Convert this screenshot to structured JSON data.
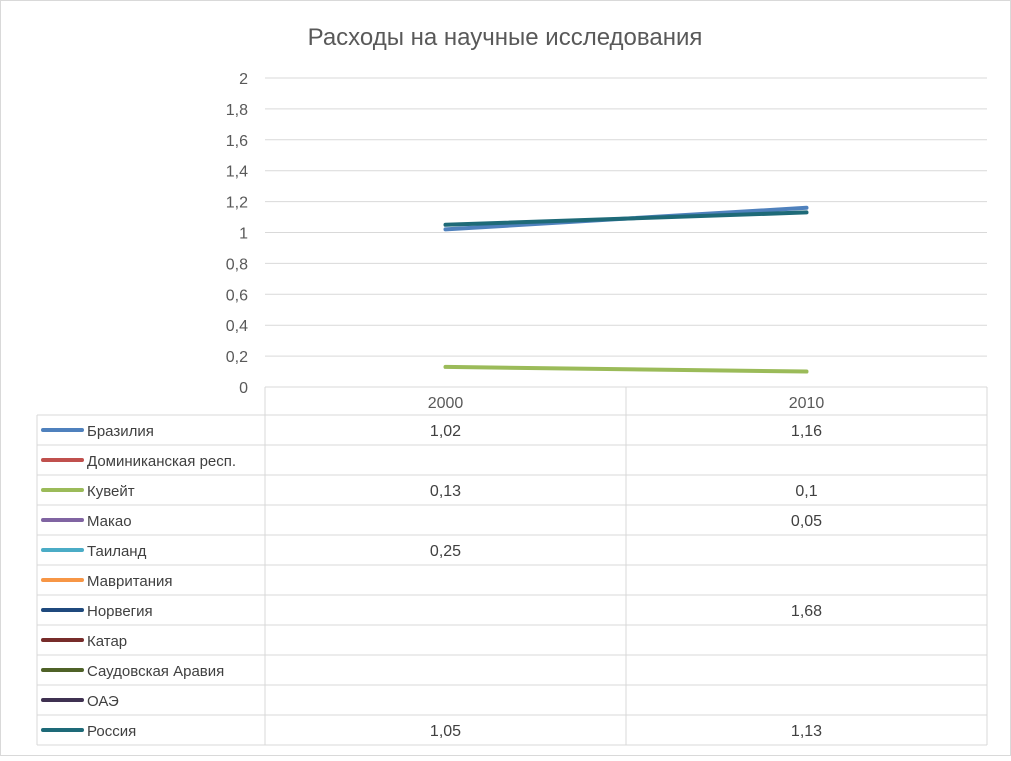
{
  "chart_data": {
    "type": "line",
    "title": "Расходы на научные исследования",
    "categories": [
      "2000",
      "2010"
    ],
    "ylim": [
      0,
      2
    ],
    "yticks": [
      0,
      0.2,
      0.4,
      0.6,
      0.8,
      1,
      1.2,
      1.4,
      1.6,
      1.8,
      2
    ],
    "ytick_labels": [
      "0",
      "0,2",
      "0,4",
      "0,6",
      "0,8",
      "1",
      "1,2",
      "1,4",
      "1,6",
      "1,8",
      "2"
    ],
    "grid": true,
    "legend": "data-table",
    "series": [
      {
        "name": "Бразилия",
        "values": [
          1.02,
          1.16
        ],
        "labels": [
          "1,02",
          "1,16"
        ],
        "color": "#4F81BD"
      },
      {
        "name": "Доминиканская респ.",
        "values": [
          null,
          null
        ],
        "labels": [
          "",
          ""
        ],
        "color": "#C0504D"
      },
      {
        "name": "Кувейт",
        "values": [
          0.13,
          0.1
        ],
        "labels": [
          "0,13",
          "0,1"
        ],
        "color": "#9BBB59"
      },
      {
        "name": "Макао",
        "values": [
          null,
          0.05
        ],
        "labels": [
          "",
          "0,05"
        ],
        "color": "#8064A2"
      },
      {
        "name": "Таиланд",
        "values": [
          0.25,
          null
        ],
        "labels": [
          "0,25",
          ""
        ],
        "color": "#4BACC6"
      },
      {
        "name": "Мавритания",
        "values": [
          null,
          null
        ],
        "labels": [
          "",
          ""
        ],
        "color": "#F79646"
      },
      {
        "name": "Норвегия",
        "values": [
          null,
          1.68
        ],
        "labels": [
          "",
          "1,68"
        ],
        "color": "#1F497D"
      },
      {
        "name": "Катар",
        "values": [
          null,
          null
        ],
        "labels": [
          "",
          ""
        ],
        "color": "#772C2A"
      },
      {
        "name": "Саудовская Аравия",
        "values": [
          null,
          null
        ],
        "labels": [
          "",
          ""
        ],
        "color": "#4F6228"
      },
      {
        "name": "ОАЭ",
        "values": [
          null,
          null
        ],
        "labels": [
          "",
          ""
        ],
        "color": "#3F3151"
      },
      {
        "name": "Россия",
        "values": [
          1.05,
          1.13
        ],
        "labels": [
          "1,05",
          "1,13"
        ],
        "color": "#1E6A78"
      }
    ]
  }
}
